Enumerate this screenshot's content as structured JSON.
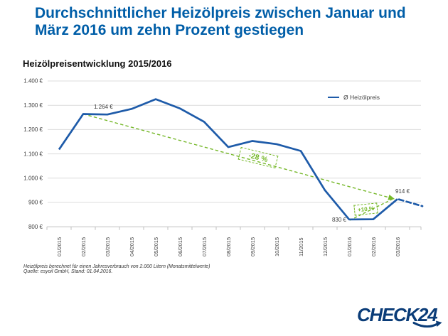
{
  "headline": {
    "line1": "Durchschnittlicher Heizölpreis zwischen Januar und",
    "line2": "März 2016 um zehn Prozent gestiegen"
  },
  "chart": {
    "title": "Heizölpreisentwicklung 2015/2016",
    "legend_label": "Ø Heizölpreis"
  },
  "chart_data": {
    "type": "line",
    "title": "Heizölpreisentwicklung 2015/2016",
    "categories": [
      "01/2015",
      "02/2015",
      "03/2015",
      "04/2015",
      "05/2015",
      "06/2015",
      "07/2015",
      "08/2015",
      "09/2015",
      "10/2015",
      "11/2015",
      "12/2015",
      "01/2016",
      "02/2016",
      "03/2016"
    ],
    "series": [
      {
        "name": "Ø Heizölpreis",
        "values": [
          1118,
          1264,
          1262,
          1285,
          1325,
          1287,
          1232,
          1128,
          1153,
          1140,
          1112,
          950,
          830,
          831,
          914
        ]
      }
    ],
    "ylim": [
      800,
      1400
    ],
    "y_ticks": [
      {
        "value": 1400,
        "label": "1.400 €"
      },
      {
        "value": 1300,
        "label": "1.300 €"
      },
      {
        "value": 1200,
        "label": "1.200 €"
      },
      {
        "value": 1100,
        "label": "1.100 €"
      },
      {
        "value": 1000,
        "label": "1.000 €"
      },
      {
        "value": 900,
        "label": "900 €"
      },
      {
        "value": 800,
        "label": "800 €"
      }
    ],
    "grid": true,
    "legend_position": "top-right",
    "annotations": {
      "max_label": {
        "category": "02/2015",
        "value": 1264,
        "text": "1.264 €"
      },
      "min_label": {
        "category": "01/2016",
        "value": 830,
        "text": "830 €"
      },
      "last_label": {
        "category": "03/2016",
        "value": 914,
        "text": "914 €"
      },
      "decline_badge": {
        "text": "-28 %",
        "from_category": "02/2015",
        "to_category": "03/2016"
      },
      "rise_badge": {
        "text": "+10 %",
        "from_category": "01/2016",
        "to_category": "03/2016"
      }
    },
    "trend": {
      "from": {
        "category": "02/2015",
        "value": 1264
      },
      "to": {
        "category": "03/2016",
        "value": 914
      }
    },
    "rise": {
      "from": {
        "category": "01/2016",
        "value": 830
      },
      "to": {
        "category": "03/2016",
        "value": 914
      }
    },
    "has_dashed_projection_tail": true
  },
  "footnote": {
    "line1": "Heizölpreis berechnet für einen Jahresverbrauch von 2.000 Litern (Monatsmittelwerte)",
    "line2": "Quelle: esyoil GmbH, Stand: 01.04.2016."
  },
  "logo": {
    "text": "CHECK24"
  },
  "colors": {
    "headline_blue": "#005EA8",
    "line_blue": "#1E5BA9",
    "trend_green": "#76B82A",
    "grid_gray": "#DCDCDC",
    "axis_gray": "#BFBFBF",
    "axis_text": "#404040",
    "logo_navy": "#0A3C78"
  }
}
